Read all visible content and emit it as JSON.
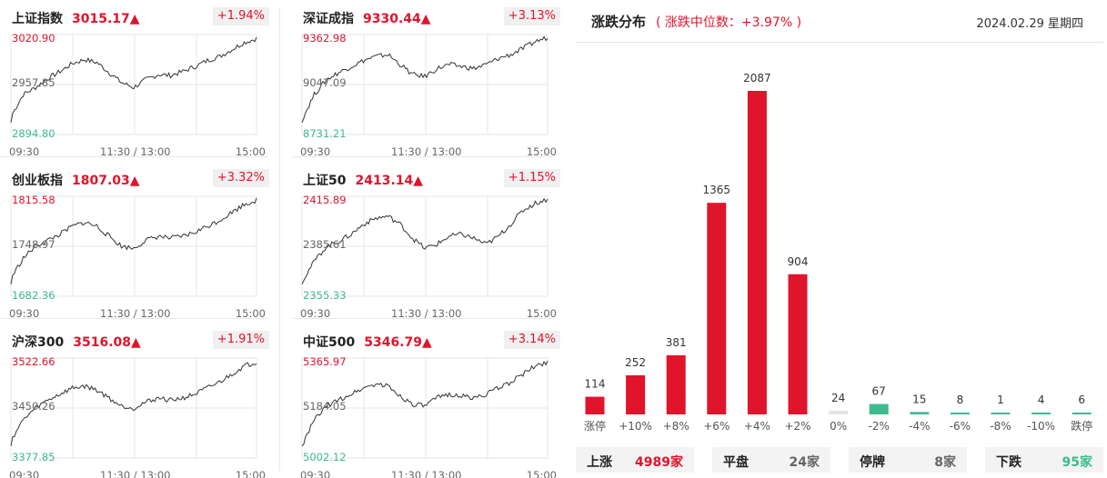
{
  "colors": {
    "up": "#e0142b",
    "down": "#3dbb8c",
    "flat": "#e4e4e4",
    "line": "#333333",
    "grid": "#e6e6e6",
    "neutral": "#666666"
  },
  "time_axis": {
    "start": "09:30",
    "mid": "11:30 / 13:00",
    "end": "15:00"
  },
  "indices": [
    {
      "name": "上证指数",
      "price": "3015.17▲",
      "change": "+1.94%",
      "high": "3020.90",
      "mid": "2957.85",
      "low": "2894.80"
    },
    {
      "name": "深证成指",
      "price": "9330.44▲",
      "change": "+3.13%",
      "high": "9362.98",
      "mid": "9047.09",
      "low": "8731.21"
    },
    {
      "name": "创业板指",
      "price": "1807.03▲",
      "change": "+3.32%",
      "high": "1815.58",
      "mid": "1748.97",
      "low": "1682.36"
    },
    {
      "name": "上证50",
      "price": "2413.14▲",
      "change": "+1.15%",
      "high": "2415.89",
      "mid": "2385.61",
      "low": "2355.33"
    },
    {
      "name": "沪深300",
      "price": "3516.08▲",
      "change": "+1.91%",
      "high": "3522.66",
      "mid": "3450.26",
      "low": "3377.85"
    },
    {
      "name": "中证500",
      "price": "5346.79▲",
      "change": "+3.14%",
      "high": "5365.97",
      "mid": "5184.05",
      "low": "5002.12"
    }
  ],
  "distribution": {
    "title": "涨跌分布",
    "subtitle": "( 涨跌中位数：+3.97% )",
    "date": "2024.02.29 星期四"
  },
  "chart_data": {
    "type": "bar",
    "categories": [
      "涨停",
      "+10%",
      "+8%",
      "+6%",
      "+4%",
      "+2%",
      "0%",
      "-2%",
      "-4%",
      "-6%",
      "-8%",
      "-10%",
      "跌停"
    ],
    "values": [
      114,
      252,
      381,
      1365,
      2087,
      904,
      24,
      67,
      15,
      8,
      1,
      4,
      6
    ],
    "bar_colors": [
      "up",
      "up",
      "up",
      "up",
      "up",
      "up",
      "flat",
      "down",
      "down",
      "down",
      "down",
      "down",
      "down"
    ],
    "ylim": [
      0,
      2087
    ]
  },
  "summary": [
    {
      "label": "上涨",
      "value": "4989家",
      "color": "up"
    },
    {
      "label": "平盘",
      "value": "24家",
      "color": "neutral"
    },
    {
      "label": "停牌",
      "value": "8家",
      "color": "neutral"
    },
    {
      "label": "下跌",
      "value": "95家",
      "color": "down"
    }
  ]
}
